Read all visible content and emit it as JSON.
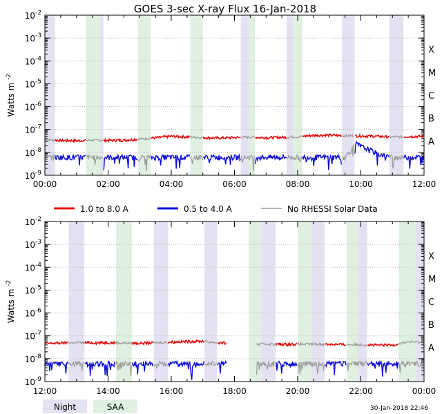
{
  "title": "GOES 3-sec X-ray Flux   16-Jan-2018",
  "ylabel": "Watts m",
  "ylabel_sup": "-2",
  "footer_timestamp": "30-Jan-2018 22:46",
  "colors": {
    "long_channel": "#e01010",
    "short_channel": "#0a0ad8",
    "no_rhessi": "#9a9a9a",
    "night_band": "#e2e2f2",
    "saa_band": "#dff0e0",
    "grid": "#b8b8b8"
  },
  "legend": {
    "long": "1.0 to 8.0 A",
    "short": "0.5 to 4.0 A",
    "no_data": "No RHESSI Solar Data",
    "night": "Night",
    "saa": "SAA"
  },
  "chart_data": [
    {
      "type": "line",
      "panel": "top",
      "xlim_hours": [
        0,
        12
      ],
      "ylim": [
        1e-09,
        0.01
      ],
      "y_scale": "log",
      "x_tick_labels": [
        "00:00",
        "02:00",
        "04:00",
        "06:00",
        "08:00",
        "10:00",
        "12:00"
      ],
      "y_tick_exponents": [
        -2,
        -3,
        -4,
        -5,
        -6,
        -7,
        -8,
        -9
      ],
      "class_labels": [
        "X",
        "M",
        "C",
        "B",
        "A"
      ],
      "night_intervals_hours": [
        [
          0.0,
          0.32
        ],
        [
          1.75,
          1.85
        ],
        [
          6.2,
          6.45
        ],
        [
          7.65,
          7.85
        ],
        [
          9.4,
          9.8
        ],
        [
          10.9,
          11.35
        ]
      ],
      "saa_intervals_hours": [
        [
          1.3,
          1.75
        ],
        [
          2.95,
          3.35
        ],
        [
          4.6,
          5.0
        ],
        [
          6.45,
          6.65
        ],
        [
          7.85,
          8.15
        ]
      ],
      "series": [
        {
          "name": "1.0 to 8.0 A",
          "x": [
            0,
            0.5,
            1.0,
            1.5,
            2.0,
            2.5,
            3.0,
            3.5,
            4.0,
            4.5,
            5.0,
            5.5,
            6.0,
            6.5,
            7.0,
            7.5,
            8.0,
            8.5,
            9.0,
            9.5,
            10.0,
            10.5,
            11.0,
            11.5,
            12.0
          ],
          "y": [
            3.6e-08,
            3.3e-08,
            3.2e-08,
            3.4e-08,
            3.3e-08,
            3.4e-08,
            3.8e-08,
            4.3e-08,
            5e-08,
            4.7e-08,
            4.4e-08,
            4.2e-08,
            4.4e-08,
            4.6e-08,
            4.4e-08,
            4.5e-08,
            4.8e-08,
            5.5e-08,
            5.6e-08,
            5.3e-08,
            5.2e-08,
            5e-08,
            4.7e-08,
            4.9e-08,
            5e-08
          ]
        },
        {
          "name": "0.5 to 4.0 A",
          "x": [
            0,
            0.5,
            1.0,
            1.5,
            2.0,
            2.5,
            3.0,
            3.5,
            4.0,
            4.5,
            5.0,
            5.5,
            6.0,
            6.5,
            7.0,
            7.5,
            8.0,
            8.5,
            9.0,
            9.5,
            9.85,
            10.0,
            10.3,
            10.6,
            11.0,
            11.5,
            12.0
          ],
          "y": [
            6e-09,
            6e-09,
            6e-09,
            6e-09,
            6e-09,
            6e-09,
            6e-09,
            6e-09,
            6e-09,
            6e-09,
            6e-09,
            6e-09,
            6e-09,
            6e-09,
            6e-09,
            6e-09,
            6e-09,
            6e-09,
            6e-09,
            6e-09,
            2.3e-08,
            1.8e-08,
            1.2e-08,
            8e-09,
            6e-09,
            6e-09,
            6e-09
          ]
        }
      ]
    },
    {
      "type": "line",
      "panel": "bottom",
      "xlim_hours": [
        12,
        24
      ],
      "ylim": [
        1e-09,
        0.01
      ],
      "y_scale": "log",
      "x_tick_labels": [
        "12:00",
        "14:00",
        "16:00",
        "18:00",
        "20:00",
        "22:00",
        "00:00"
      ],
      "y_tick_exponents": [
        -2,
        -3,
        -4,
        -5,
        -6,
        -7,
        -8,
        -9
      ],
      "class_labels": [
        "X",
        "M",
        "C",
        "B",
        "A"
      ],
      "night_intervals_hours": [
        [
          12.75,
          13.25
        ],
        [
          15.45,
          15.9
        ],
        [
          17.05,
          17.45
        ],
        [
          18.85,
          19.3
        ],
        [
          20.45,
          20.85
        ],
        [
          21.9,
          22.2
        ],
        [
          23.75,
          24.0
        ]
      ],
      "saa_intervals_hours": [
        [
          14.25,
          14.75
        ],
        [
          18.45,
          18.85
        ],
        [
          20.0,
          20.45
        ],
        [
          21.55,
          21.9
        ],
        [
          23.2,
          23.75
        ]
      ],
      "series": [
        {
          "name": "1.0 to 8.0 A",
          "x": [
            12.0,
            12.5,
            13.0,
            13.5,
            14.0,
            14.5,
            15.0,
            15.5,
            16.0,
            16.5,
            17.0,
            17.5,
            17.75,
            18.7,
            19.0,
            19.5,
            20.0,
            20.5,
            21.0,
            21.5,
            22.0,
            22.5,
            23.0,
            23.5,
            24.0
          ],
          "y": [
            4.6e-08,
            4.8e-08,
            5e-08,
            4.9e-08,
            5e-08,
            4.8e-08,
            4.7e-08,
            4.9e-08,
            5.3e-08,
            5.6e-08,
            5.8e-08,
            4.9e-08,
            4.8e-08,
            4.2e-08,
            4.4e-08,
            4.2e-08,
            4.3e-08,
            4.3e-08,
            4.3e-08,
            4.1e-08,
            4.1e-08,
            3.9e-08,
            3.9e-08,
            5.5e-08,
            5e-08
          ]
        },
        {
          "name": "0.5 to 4.0 A",
          "x": [
            12.0,
            12.5,
            13.0,
            13.5,
            14.0,
            14.5,
            15.0,
            15.5,
            16.0,
            16.5,
            17.0,
            17.5,
            17.75,
            18.7,
            19.0,
            19.5,
            20.0,
            20.5,
            21.0,
            21.5,
            22.0,
            22.5,
            23.0,
            23.5,
            24.0
          ],
          "y": [
            6e-09,
            6e-09,
            6e-09,
            6e-09,
            6e-09,
            6e-09,
            6e-09,
            6e-09,
            6e-09,
            6e-09,
            6e-09,
            6e-09,
            6e-09,
            6e-09,
            6e-09,
            6e-09,
            6e-09,
            6e-09,
            6e-09,
            6e-09,
            6e-09,
            6e-09,
            6e-09,
            6e-09,
            6e-09
          ]
        }
      ]
    }
  ]
}
